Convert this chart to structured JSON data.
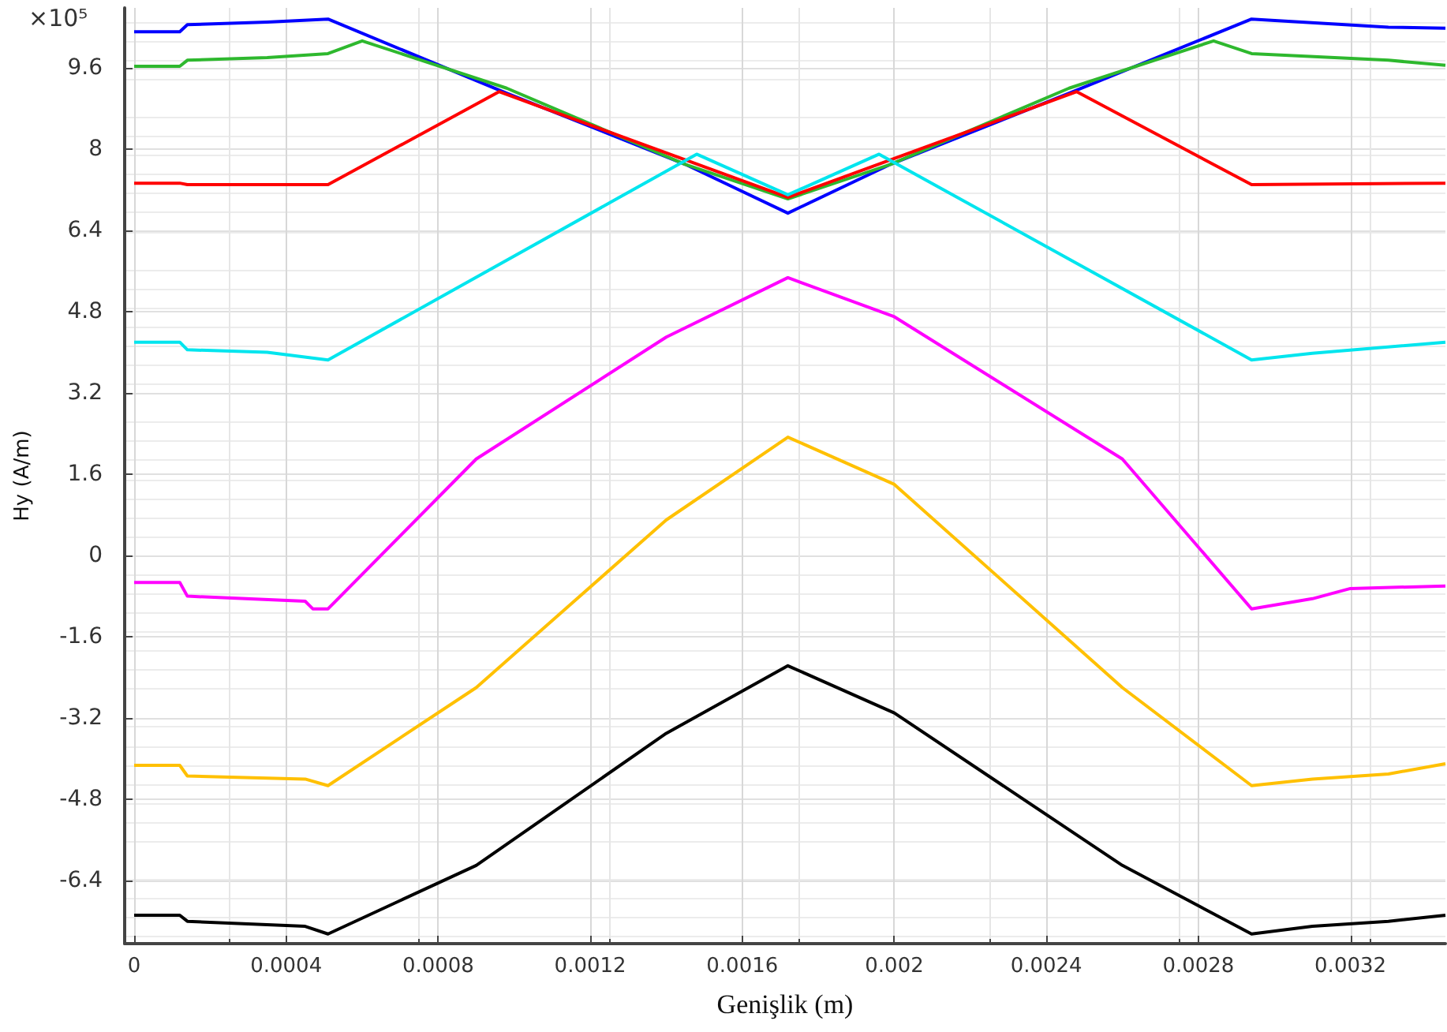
{
  "chart_data": {
    "type": "line",
    "xlabel": "Genişlik (m)",
    "ylabel": "Hy (A/m)",
    "annotations": [
      "×10⁵"
    ],
    "xlim": [
      -2.5e-05,
      0.00345
    ],
    "ylim": [
      -7.64,
      10.78
    ],
    "xticks": [
      0,
      0.0004,
      0.0008,
      0.0012,
      0.0016,
      0.002,
      0.0024,
      0.0028,
      0.0032
    ],
    "yticks": [
      -6.4,
      -4.8,
      -3.2,
      -1.6,
      0,
      1.6,
      3.2,
      4.8,
      6.4,
      8,
      9.6
    ],
    "grid": true,
    "marker": "none",
    "line_style": "solid",
    "series": [
      {
        "color": "#0000ff",
        "x": [
          0,
          0.00012,
          0.00014,
          0.00035,
          0.00051,
          0.00098,
          0.00145,
          0.00172,
          0.00199,
          0.00246,
          0.00294,
          0.0033,
          0.00345
        ],
        "values": [
          10.31,
          10.31,
          10.45,
          10.5,
          10.56,
          9.1,
          7.7,
          6.74,
          7.7,
          9.1,
          10.56,
          10.4,
          10.38
        ]
      },
      {
        "color": "#2eb82e",
        "x": [
          0,
          0.00012,
          0.00014,
          0.00035,
          0.00051,
          0.0006,
          0.00098,
          0.00145,
          0.00172,
          0.00199,
          0.00246,
          0.00284,
          0.00294,
          0.0033,
          0.00345
        ],
        "values": [
          9.63,
          9.63,
          9.75,
          9.8,
          9.88,
          10.13,
          9.2,
          7.7,
          7.02,
          7.7,
          9.2,
          10.13,
          9.88,
          9.75,
          9.65
        ]
      },
      {
        "color": "#ff0000",
        "x": [
          0,
          0.00012,
          0.00014,
          0.00051,
          0.00096,
          0.00172,
          0.00248,
          0.00294,
          0.00345
        ],
        "values": [
          7.33,
          7.33,
          7.3,
          7.3,
          9.13,
          7.05,
          9.13,
          7.3,
          7.33
        ]
      },
      {
        "color": "#00e5ee",
        "x": [
          0,
          0.00012,
          0.00014,
          0.00035,
          0.00051,
          0.00148,
          0.00172,
          0.00196,
          0.00294,
          0.0031,
          0.00345
        ],
        "values": [
          4.2,
          4.2,
          4.05,
          4,
          3.85,
          7.9,
          7.1,
          7.9,
          3.85,
          3.98,
          4.2
        ]
      },
      {
        "color": "#ff00ff",
        "x": [
          0,
          0.00012,
          0.00014,
          0.00045,
          0.00047,
          0.00051,
          0.0009,
          0.0014,
          0.00172,
          0.002,
          0.0026,
          0.00294,
          0.0031,
          0.0032,
          0.00345
        ],
        "values": [
          -0.53,
          -0.53,
          -0.8,
          -0.9,
          -1.05,
          -1.05,
          1.9,
          4.3,
          5.47,
          4.7,
          1.9,
          -1.05,
          -0.85,
          -0.65,
          -0.6
        ]
      },
      {
        "color": "#ffc000",
        "x": [
          0,
          0.00012,
          0.00014,
          0.00045,
          0.00051,
          0.0009,
          0.0014,
          0.00172,
          0.002,
          0.0026,
          0.00294,
          0.0031,
          0.0033,
          0.00345
        ],
        "values": [
          -4.13,
          -4.13,
          -4.34,
          -4.4,
          -4.53,
          -2.6,
          0.7,
          2.33,
          1.4,
          -2.6,
          -4.53,
          -4.4,
          -4.3,
          -4.1
        ]
      },
      {
        "color": "#000000",
        "x": [
          0,
          0.00012,
          0.00014,
          0.00045,
          0.00051,
          0.0009,
          0.0014,
          0.00172,
          0.002,
          0.0026,
          0.00294,
          0.0031,
          0.0033,
          0.00345
        ],
        "values": [
          -7.08,
          -7.08,
          -7.2,
          -7.3,
          -7.45,
          -6.1,
          -3.5,
          -2.17,
          -3.1,
          -6.1,
          -7.45,
          -7.3,
          -7.2,
          -7.08
        ]
      }
    ]
  }
}
